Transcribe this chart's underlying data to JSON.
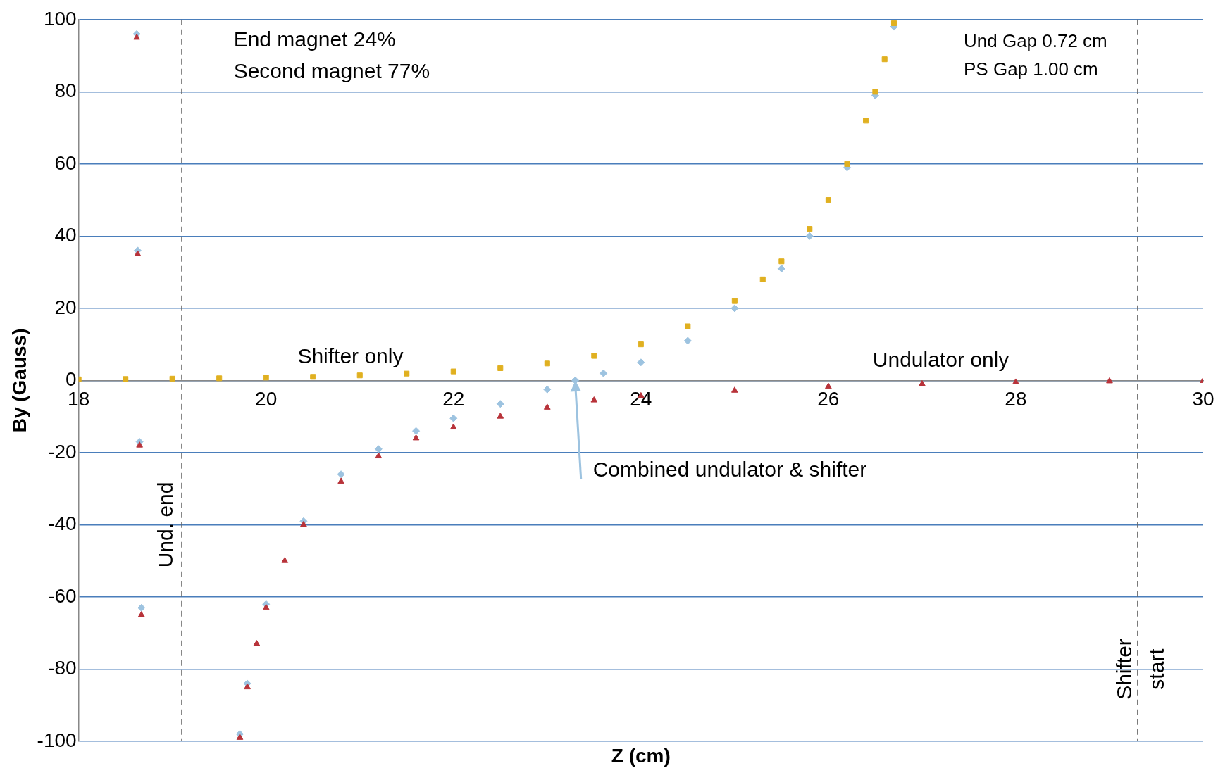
{
  "chart_data": {
    "type": "scatter",
    "xlabel": "Z (cm)",
    "ylabel": "By (Gauss)",
    "xlim": [
      18,
      30
    ],
    "xticks": [
      18,
      20,
      22,
      24,
      26,
      28,
      30
    ],
    "ylim": [
      -100,
      100
    ],
    "yticks": [
      -100,
      -80,
      -60,
      -40,
      -20,
      0,
      20,
      40,
      60,
      80,
      100
    ],
    "grid": "y",
    "legend": false,
    "series": [
      {
        "name": "Shifter only",
        "color": "#e0b020",
        "marker": "square",
        "x": [
          18,
          18.5,
          19,
          19.5,
          20,
          20.5,
          21,
          21.5,
          22,
          22.5,
          23,
          23.5,
          24,
          24.5,
          25,
          25.3,
          25.5,
          25.8,
          26,
          26.2,
          26.4,
          26.5,
          26.6,
          26.7
        ],
        "values": [
          0.3,
          0.4,
          0.5,
          0.6,
          0.8,
          1,
          1.4,
          1.9,
          2.5,
          3.4,
          4.7,
          6.8,
          10,
          15,
          22,
          28,
          33,
          42,
          50,
          60,
          72,
          80,
          89,
          99
        ]
      },
      {
        "name": "Undulator only",
        "color": "#b8333a",
        "marker": "triangle",
        "x": [
          18.62,
          18.63,
          18.65,
          18.67,
          19.72,
          19.8,
          19.9,
          20,
          20.2,
          20.4,
          20.8,
          21.2,
          21.6,
          22,
          22.5,
          23,
          23.5,
          24,
          25,
          26,
          27,
          28,
          29,
          30
        ],
        "values": [
          95,
          35,
          -18,
          -65,
          -99,
          -85,
          -73,
          -63,
          -50,
          -40,
          -28,
          -21,
          -16,
          -13,
          -10,
          -7.5,
          -5.5,
          -4.3,
          -2.8,
          -1.7,
          -1,
          -0.5,
          -0.2,
          -0.1
        ]
      },
      {
        "name": "Combined undulator & shifter",
        "color": "#9dc3e0",
        "marker": "diamond",
        "x": [
          18.62,
          18.63,
          18.65,
          18.67,
          19.72,
          19.8,
          20,
          20.4,
          20.8,
          21.2,
          21.6,
          22,
          22.5,
          23,
          23.3,
          23.6,
          24,
          24.5,
          25,
          25.5,
          25.8,
          26.2,
          26.5,
          26.7
        ],
        "values": [
          96,
          36,
          -17,
          -63,
          -98,
          -84,
          -62,
          -39,
          -26,
          -19,
          -14,
          -10.5,
          -6.5,
          -2.5,
          0,
          2,
          5,
          11,
          20,
          31,
          40,
          59,
          79,
          98
        ]
      }
    ],
    "ref_lines": [
      {
        "axis": "x",
        "value": 19.1,
        "label": "Und. end",
        "color": "#666666",
        "line_style": "dashed"
      },
      {
        "axis": "x",
        "value": 29.3,
        "label": "Shifter start",
        "color": "#666666",
        "line_style": "dashed"
      }
    ],
    "annotations": [
      "End magnet 24%",
      "Second magnet 77%",
      "Und Gap 0.72 cm",
      "PS Gap 1.00 cm"
    ]
  }
}
